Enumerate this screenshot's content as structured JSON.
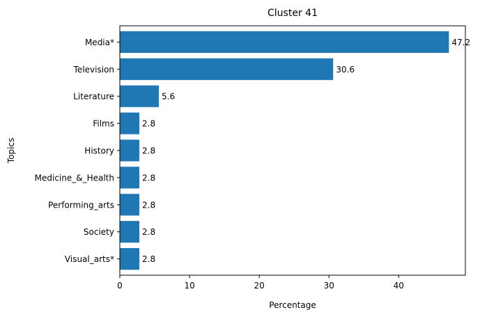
{
  "chart_data": {
    "type": "bar",
    "orientation": "horizontal",
    "title": "Cluster 41",
    "xlabel": "Percentage",
    "ylabel": "Topics",
    "categories": [
      "Media*",
      "Television",
      "Literature",
      "Films",
      "History",
      "Medicine_&_Health",
      "Performing_arts",
      "Society",
      "Visual_arts*"
    ],
    "values": [
      47.2,
      30.6,
      5.6,
      2.8,
      2.8,
      2.8,
      2.8,
      2.8,
      2.8
    ],
    "data_labels": [
      "47.2",
      "30.6",
      "5.6",
      "2.8",
      "2.8",
      "2.8",
      "2.8",
      "2.8",
      "2.8"
    ],
    "x_ticks": [
      0,
      10,
      20,
      30,
      40
    ],
    "x_tick_labels": [
      "0",
      "10",
      "20",
      "30",
      "40"
    ],
    "xlim": [
      0,
      49.56
    ],
    "grid": false,
    "bar_color": "#1f77b4"
  }
}
